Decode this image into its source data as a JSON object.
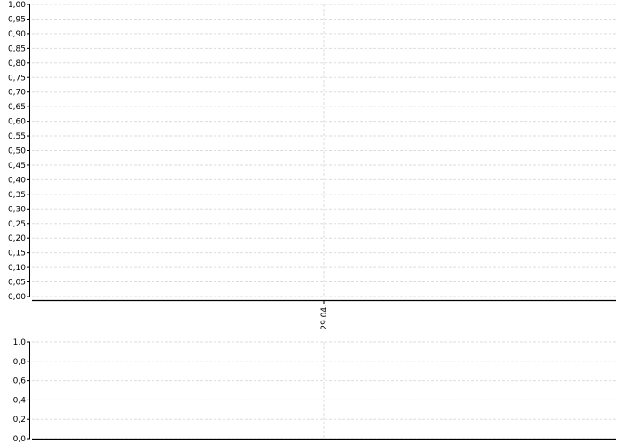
{
  "chart_data": [
    {
      "type": "line",
      "title": "",
      "xlabel": "",
      "ylabel": "",
      "x_tick_labels": [
        "29.04."
      ],
      "ylim": [
        0,
        1
      ],
      "y_ticks": [
        "0,00",
        "0,05",
        "0,10",
        "0,15",
        "0,20",
        "0,25",
        "0,30",
        "0,35",
        "0,40",
        "0,45",
        "0,50",
        "0,55",
        "0,60",
        "0,65",
        "0,70",
        "0,75",
        "0,80",
        "0,85",
        "0,90",
        "0,95",
        "1,00"
      ],
      "grid": true,
      "series": []
    },
    {
      "type": "line",
      "title": "",
      "xlabel": "",
      "ylabel": "",
      "ylim": [
        0,
        1
      ],
      "y_ticks": [
        "0,0",
        "0,2",
        "0,4",
        "0,6",
        "0,8",
        "1,0"
      ],
      "grid": true,
      "series": []
    }
  ],
  "colors": {
    "grid": "#dddddd",
    "axis": "#000000"
  }
}
